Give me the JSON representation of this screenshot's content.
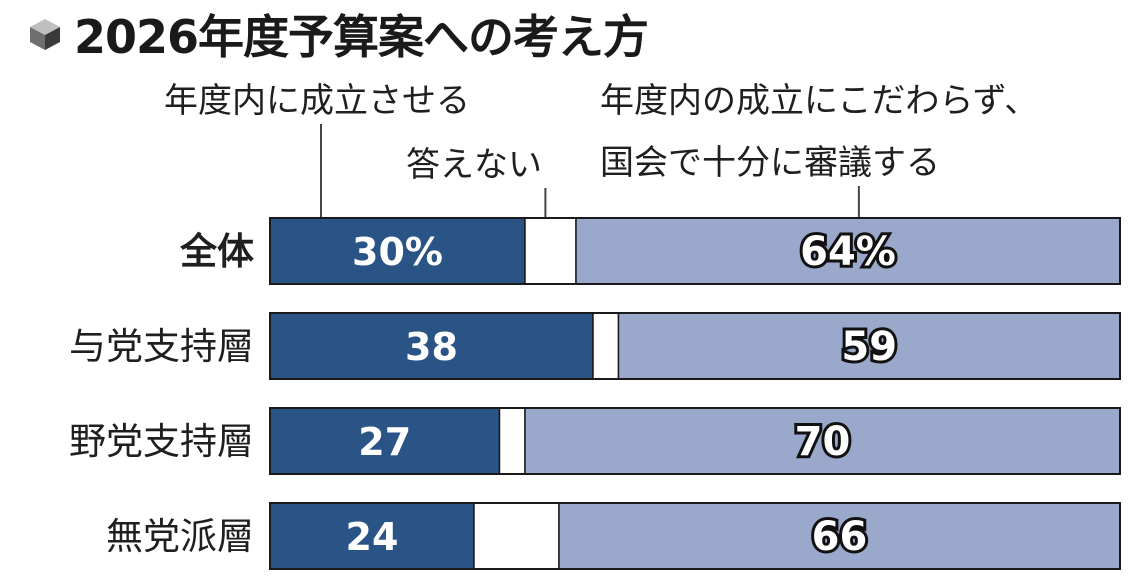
{
  "title": "2026年度予算案への考え方",
  "colors": {
    "yes": "#2a5386",
    "na": "#ffffff",
    "no": "#9aa9cb",
    "border": "#1a1a1a",
    "leader": "#444444"
  },
  "chart_data": {
    "type": "bar",
    "stacked": true,
    "orientation": "horizontal",
    "title": "2026年度予算案への考え方",
    "categories": [
      "全体",
      "与党支持層",
      "野党支持層",
      "無党派層"
    ],
    "value_labels": [
      [
        "30%",
        "",
        "64%"
      ],
      [
        "38",
        "",
        "59"
      ],
      [
        "27",
        "",
        "70"
      ],
      [
        "24",
        "",
        "66"
      ]
    ],
    "series": [
      {
        "name": "年度内に成立させる",
        "values": [
          30,
          38,
          27,
          24
        ]
      },
      {
        "name": "答えない",
        "values": [
          6,
          3,
          3,
          10
        ]
      },
      {
        "name": "年度内の成立にこだわらず、国会で十分に審議する",
        "values": [
          64,
          59,
          70,
          66
        ]
      }
    ],
    "legend_labels": {
      "yes": "年度内に成立させる",
      "na": "答えない",
      "no_line1": "年度内の成立にこだわらず、",
      "no_line2": "国会で十分に審議する"
    },
    "xlim": [
      0,
      100
    ]
  }
}
